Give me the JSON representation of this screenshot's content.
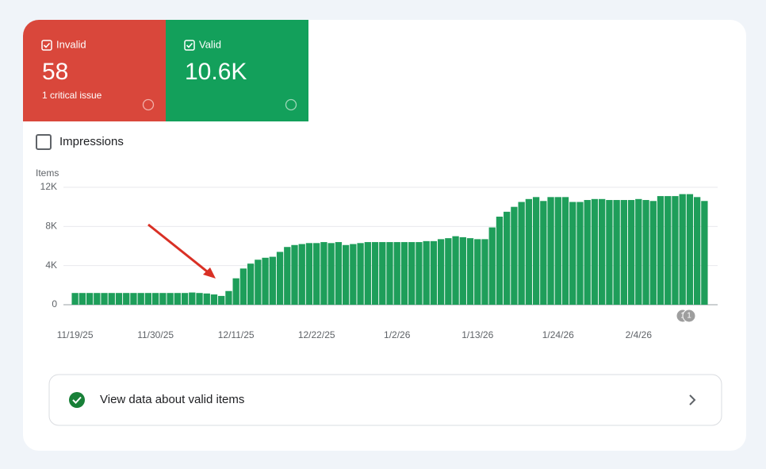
{
  "cards": [
    {
      "label": "Invalid",
      "value": "58",
      "subtext": "1 critical issue"
    },
    {
      "label": "Valid",
      "value": "10.6K"
    }
  ],
  "impressions_label": "Impressions",
  "chart_data": {
    "type": "bar",
    "y_label": "Items",
    "categories": [
      "11/19/25",
      null,
      null,
      null,
      null,
      null,
      null,
      null,
      null,
      null,
      null,
      "11/30/25",
      null,
      null,
      null,
      null,
      null,
      null,
      null,
      null,
      null,
      null,
      "12/11/25",
      null,
      null,
      null,
      null,
      null,
      null,
      null,
      null,
      null,
      null,
      "12/22/25",
      null,
      null,
      null,
      null,
      null,
      null,
      null,
      null,
      null,
      null,
      "1/2/26",
      null,
      null,
      null,
      null,
      null,
      null,
      null,
      null,
      null,
      null,
      "1/13/26",
      null,
      null,
      null,
      null,
      null,
      null,
      null,
      null,
      null,
      null,
      "1/24/26",
      null,
      null,
      null,
      null,
      null,
      null,
      null,
      null,
      null,
      null,
      "2/4/26",
      null,
      null,
      null,
      null,
      null,
      null,
      null,
      null,
      null
    ],
    "values": [
      1200,
      1200,
      1200,
      1200,
      1200,
      1200,
      1200,
      1200,
      1200,
      1200,
      1200,
      1200,
      1200,
      1200,
      1200,
      1200,
      1250,
      1200,
      1150,
      1050,
      900,
      1400,
      2700,
      3700,
      4200,
      4600,
      4800,
      4900,
      5400,
      5900,
      6100,
      6200,
      6300,
      6300,
      6400,
      6300,
      6400,
      6100,
      6200,
      6300,
      6400,
      6400,
      6400,
      6400,
      6400,
      6400,
      6400,
      6400,
      6500,
      6500,
      6700,
      6800,
      7000,
      6900,
      6800,
      6700,
      6700,
      7900,
      9000,
      9500,
      10000,
      10500,
      10800,
      11000,
      10600,
      11000,
      11000,
      11000,
      10500,
      10500,
      10700,
      10800,
      10800,
      10700,
      10700,
      10700,
      10700,
      10800,
      10700,
      10600,
      11100,
      11100,
      11100,
      11300,
      11300,
      11000,
      10600
    ],
    "color": "#1e9e5a",
    "ylim": [
      0,
      12000
    ],
    "yticks": [
      0,
      {
        "value": 4000,
        "label": "4K"
      },
      {
        "value": 8000,
        "label": "8K"
      },
      {
        "value": 12000,
        "label": "12K"
      }
    ],
    "grid": true,
    "annotations": [
      "1",
      "1"
    ]
  },
  "link": {
    "label": "View data about valid items"
  }
}
